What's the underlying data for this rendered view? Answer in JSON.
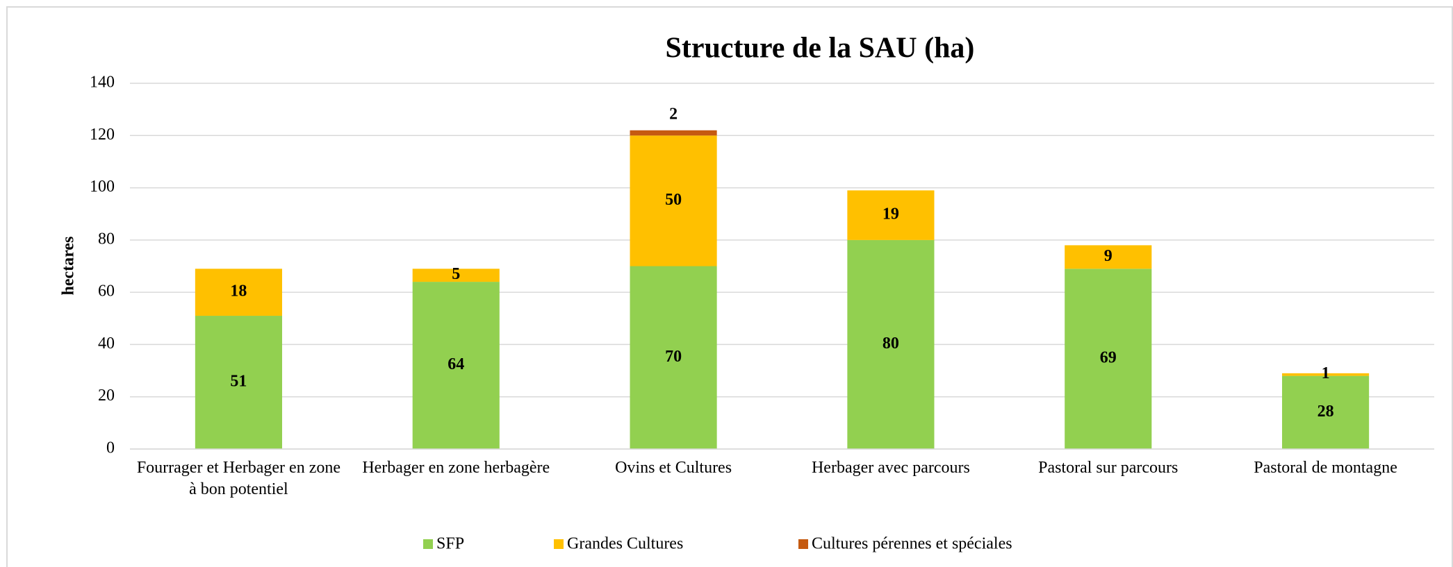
{
  "chart_data": {
    "type": "stacked_bar",
    "title": "Structure de la SAU (ha)",
    "ylabel": "hectares",
    "categories": [
      "Fourrager et Herbager en zone à bon potentiel",
      "Herbager en zone herbagère",
      "Ovins et Cultures",
      "Herbager avec parcours",
      "Pastoral sur parcours",
      "Pastoral de montagne"
    ],
    "series": [
      {
        "name": "SFP",
        "color": "#92d050",
        "values": [
          51,
          64,
          70,
          80,
          69,
          28
        ]
      },
      {
        "name": "Grandes Cultures",
        "color": "#ffc000",
        "values": [
          18,
          5,
          50,
          19,
          9,
          1
        ]
      },
      {
        "name": "Cultures pérennes et spéciales",
        "color": "#c55a11",
        "values": [
          null,
          null,
          2,
          null,
          null,
          null
        ]
      }
    ],
    "ylim": [
      0,
      140
    ],
    "yticks": [
      0,
      20,
      40,
      60,
      80,
      100,
      120,
      140
    ],
    "grid": true,
    "legend": "bottom"
  }
}
